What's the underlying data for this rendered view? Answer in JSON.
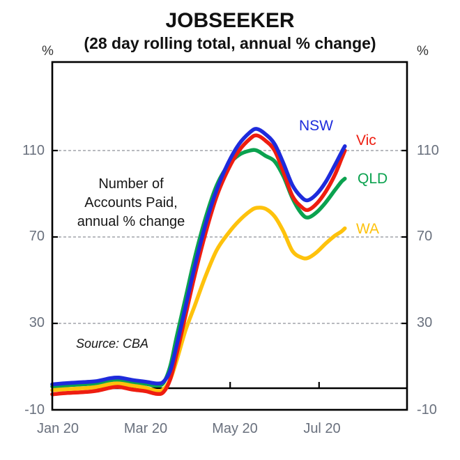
{
  "title": "JOBSEEKER",
  "subtitle": "(28 day rolling total, annual % change)",
  "left_axis_unit": "%",
  "right_axis_unit": "%",
  "annotation": {
    "lines": [
      "Number of",
      "Accounts Paid,",
      "annual % change"
    ]
  },
  "source": "Source: CBA",
  "chart_data": {
    "type": "line",
    "title": "JOBSEEKER",
    "subtitle": "(28 day rolling total, annual % change)",
    "x_unit": "months since 1 Jan 2020",
    "x_tick_months": [
      0,
      2,
      4,
      6
    ],
    "x_tick_labels": [
      "Jan 20",
      "Mar 20",
      "May 20",
      "Jul 20"
    ],
    "y_ticks": [
      -10,
      30,
      70,
      110
    ],
    "y_tick_labels": [
      "110",
      "70",
      "30",
      "-10"
    ],
    "ylim": [
      -10,
      151
    ],
    "grid": "dashed horizontal gridlines at 30, 70, 110; solid black zero line",
    "legend_position": "inline labels near line ends",
    "x": [
      0,
      0.35,
      0.7,
      1.0,
      1.3,
      1.5,
      1.8,
      2.1,
      2.35,
      2.5,
      2.65,
      2.8,
      3.0,
      3.2,
      3.45,
      3.7,
      3.95,
      4.2,
      4.45,
      4.6,
      4.8,
      5.0,
      5.2,
      5.4,
      5.6,
      5.75,
      5.95,
      6.15,
      6.35,
      6.5,
      6.58
    ],
    "series": [
      {
        "name": "QLD",
        "color": "#0ba24f",
        "values": [
          0.8,
          1.4,
          1.8,
          2.3,
          3.6,
          3.9,
          2.8,
          2.0,
          1.2,
          2.5,
          10,
          24,
          42,
          60,
          79,
          94,
          103,
          108,
          110,
          110,
          107.5,
          105,
          98,
          88,
          81,
          79,
          81.5,
          86,
          91.5,
          95.5,
          97
        ]
      },
      {
        "name": "WA",
        "color": "#fec20c",
        "values": [
          -0.9,
          -0.4,
          0.0,
          0.6,
          1.9,
          2.2,
          1.2,
          0.2,
          -1.2,
          -0.5,
          4,
          13,
          27,
          38,
          52,
          64,
          71.5,
          77.5,
          82,
          83.5,
          83,
          79.5,
          72.5,
          63.5,
          60.5,
          60.3,
          63,
          67,
          70.5,
          72.5,
          74
        ]
      },
      {
        "name": "Vic",
        "color": "#ee1d10",
        "values": [
          -2.8,
          -2.2,
          -1.8,
          -1.2,
          0.2,
          0.6,
          -0.6,
          -1.4,
          -2.6,
          -1.8,
          4,
          16,
          34,
          52,
          72,
          89,
          101,
          110,
          115.5,
          117,
          114.5,
          110,
          100,
          89,
          84,
          82.5,
          85.5,
          91,
          98.5,
          106,
          110
        ]
      },
      {
        "name": "NSW",
        "color": "#1e2bdc",
        "values": [
          1.8,
          2.4,
          2.8,
          3.3,
          4.6,
          4.9,
          3.8,
          3.0,
          2.2,
          3.0,
          8,
          20,
          38,
          56,
          76,
          92,
          104,
          113,
          118.5,
          120,
          117.5,
          113,
          104,
          94,
          88.5,
          87,
          90,
          95.5,
          103,
          109,
          112
        ]
      }
    ]
  },
  "series_label_names": {
    "nsw": "NSW",
    "vic": "Vic",
    "qld": "QLD",
    "wa": "WA"
  },
  "colors": {
    "nsw": "#1e2bdc",
    "vic": "#ee1d10",
    "qld": "#0ba24f",
    "wa": "#fec20c",
    "gridline": "#a0a4aa",
    "axis_frame": "#000000",
    "tick_label": "#69707d"
  }
}
